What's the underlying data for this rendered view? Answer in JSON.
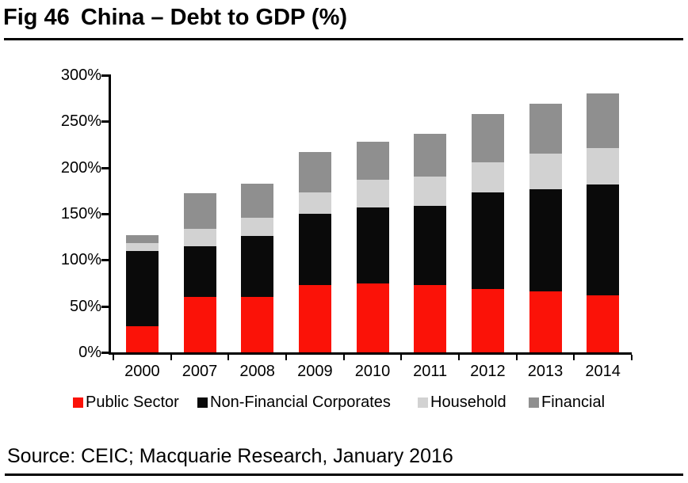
{
  "header": {
    "fig_label": "Fig 46",
    "title": "China – Debt to GDP (%)"
  },
  "footer": {
    "source": "Source: CEIC; Macquarie Research, January 2016"
  },
  "chart_data": {
    "type": "bar",
    "stacked": true,
    "title": "China – Debt to GDP (%)",
    "categories": [
      "2000",
      "2007",
      "2008",
      "2009",
      "2010",
      "2011",
      "2012",
      "2013",
      "2014"
    ],
    "series": [
      {
        "name": "Public Sector",
        "color": "#fb1208",
        "values": [
          28,
          60,
          60,
          73,
          75,
          73,
          69,
          66,
          62
        ]
      },
      {
        "name": "Non-Financial Corporates",
        "color": "#0a0a0a",
        "values": [
          82,
          55,
          66,
          77,
          82,
          86,
          104,
          111,
          120
        ]
      },
      {
        "name": "Household",
        "color": "#d2d2d2",
        "values": [
          8,
          19,
          20,
          23,
          30,
          31,
          33,
          38,
          39
        ]
      },
      {
        "name": "Financial",
        "color": "#8f8f8f",
        "values": [
          9,
          38,
          37,
          44,
          41,
          47,
          52,
          54,
          59
        ]
      }
    ],
    "totals": [
      127,
      172,
      183,
      217,
      228,
      237,
      258,
      269,
      280
    ],
    "xlabel": "",
    "ylabel": "",
    "y_axis": {
      "min": 0,
      "max": 300,
      "step": 50,
      "tick_format": "percent",
      "ticks": [
        "0%",
        "50%",
        "100%",
        "150%",
        "200%",
        "250%",
        "300%"
      ]
    },
    "grid": false,
    "legend_position": "bottom",
    "axis_color": "#000000",
    "background_color": "#ffffff"
  }
}
